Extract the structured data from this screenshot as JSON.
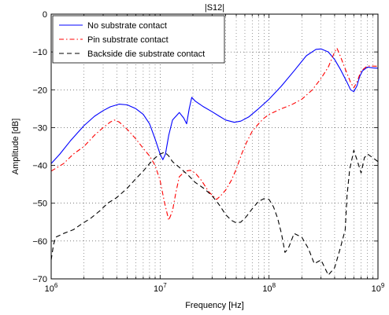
{
  "chart_data": {
    "type": "line",
    "title": "|S12|",
    "xlabel": "Frequency [Hz]",
    "ylabel": "Amplitude [dB]",
    "xscale": "log",
    "xlim": [
      1000000,
      1000000000
    ],
    "ylim": [
      -70,
      0
    ],
    "grid": "on (major solid, minor dotted)",
    "legend_position": "top-left",
    "x_tick_labels": [
      {
        "base": "10",
        "exp": "6"
      },
      {
        "base": "10",
        "exp": "7"
      },
      {
        "base": "10",
        "exp": "8"
      },
      {
        "base": "10",
        "exp": "9"
      }
    ],
    "y_tick_labels": [
      "0",
      "−10",
      "−20",
      "−30",
      "−40",
      "−50",
      "−60",
      "−70"
    ],
    "y_ticks": [
      0,
      -10,
      -20,
      -30,
      -40,
      -50,
      -60,
      -70
    ],
    "series": [
      {
        "name": "No substrate contact",
        "color": "#0000ff",
        "dash": "solid",
        "points": [
          [
            1000000,
            -39.5
          ],
          [
            1200000,
            -37
          ],
          [
            1500000,
            -33.5
          ],
          [
            2000000,
            -29.5
          ],
          [
            2500000,
            -27
          ],
          [
            3000000,
            -25.5
          ],
          [
            3500000,
            -24.5
          ],
          [
            4200000,
            -23.8
          ],
          [
            5000000,
            -24
          ],
          [
            6000000,
            -25
          ],
          [
            7000000,
            -26.5
          ],
          [
            8000000,
            -29
          ],
          [
            9000000,
            -33
          ],
          [
            10000000,
            -37
          ],
          [
            10600000,
            -38.5
          ],
          [
            11200000,
            -37
          ],
          [
            12000000,
            -32
          ],
          [
            13000000,
            -28
          ],
          [
            15000000,
            -26
          ],
          [
            16500000,
            -27.5
          ],
          [
            17500000,
            -29
          ],
          [
            18500000,
            -25
          ],
          [
            19500000,
            -22
          ],
          [
            21000000,
            -23
          ],
          [
            25000000,
            -24.5
          ],
          [
            30000000,
            -25.8
          ],
          [
            35000000,
            -27
          ],
          [
            40000000,
            -28
          ],
          [
            48000000,
            -28.6
          ],
          [
            55000000,
            -28.3
          ],
          [
            65000000,
            -27.2
          ],
          [
            80000000,
            -25
          ],
          [
            100000000,
            -22.5
          ],
          [
            130000000,
            -19
          ],
          [
            170000000,
            -15
          ],
          [
            220000000,
            -11
          ],
          [
            270000000,
            -9.3
          ],
          [
            300000000,
            -9.2
          ],
          [
            350000000,
            -10
          ],
          [
            400000000,
            -12
          ],
          [
            450000000,
            -14.5
          ],
          [
            520000000,
            -18
          ],
          [
            560000000,
            -20
          ],
          [
            600000000,
            -20.5
          ],
          [
            640000000,
            -19
          ],
          [
            680000000,
            -16.5
          ],
          [
            720000000,
            -15
          ],
          [
            800000000,
            -14
          ],
          [
            900000000,
            -14.2
          ],
          [
            1000000000,
            -14.3
          ]
        ]
      },
      {
        "name": "Pin substrate contact",
        "color": "#ff0000",
        "dash": "dashdot",
        "points": [
          [
            1000000,
            -41.5
          ],
          [
            1300000,
            -39.5
          ],
          [
            1600000,
            -37
          ],
          [
            2000000,
            -35
          ],
          [
            2500000,
            -32
          ],
          [
            3000000,
            -30
          ],
          [
            3500000,
            -28.5
          ],
          [
            3800000,
            -28
          ],
          [
            4200000,
            -28.5
          ],
          [
            5000000,
            -30.5
          ],
          [
            6000000,
            -33
          ],
          [
            7000000,
            -35.5
          ],
          [
            8000000,
            -37.5
          ],
          [
            9000000,
            -40
          ],
          [
            10000000,
            -44
          ],
          [
            11000000,
            -50
          ],
          [
            12000000,
            -54.5
          ],
          [
            13000000,
            -52
          ],
          [
            14000000,
            -47
          ],
          [
            15000000,
            -43
          ],
          [
            17000000,
            -41.5
          ],
          [
            19000000,
            -41.3
          ],
          [
            21000000,
            -42
          ],
          [
            24000000,
            -44
          ],
          [
            28000000,
            -47
          ],
          [
            33000000,
            -49
          ],
          [
            36000000,
            -48
          ],
          [
            40000000,
            -46.5
          ],
          [
            45000000,
            -44
          ],
          [
            50000000,
            -41
          ],
          [
            56000000,
            -37
          ],
          [
            62000000,
            -34
          ],
          [
            70000000,
            -31
          ],
          [
            80000000,
            -29
          ],
          [
            90000000,
            -27.5
          ],
          [
            100000000,
            -26.5
          ],
          [
            130000000,
            -25
          ],
          [
            160000000,
            -24
          ],
          [
            200000000,
            -22.5
          ],
          [
            250000000,
            -20
          ],
          [
            300000000,
            -17
          ],
          [
            350000000,
            -14
          ],
          [
            400000000,
            -10
          ],
          [
            420000000,
            -9
          ],
          [
            450000000,
            -11
          ],
          [
            500000000,
            -14.5
          ],
          [
            560000000,
            -18
          ],
          [
            600000000,
            -19.5
          ],
          [
            640000000,
            -18
          ],
          [
            700000000,
            -15
          ],
          [
            800000000,
            -13.7
          ],
          [
            1000000000,
            -13.8
          ]
        ]
      },
      {
        "name": "Backside die substrate contact",
        "color": "#000000",
        "dash": "dashed",
        "points": [
          [
            1000000,
            -65
          ],
          [
            1050000,
            -61
          ],
          [
            1100000,
            -59
          ],
          [
            1300000,
            -58
          ],
          [
            1600000,
            -57
          ],
          [
            1900000,
            -55.5
          ],
          [
            2300000,
            -54
          ],
          [
            2800000,
            -52
          ],
          [
            3300000,
            -50
          ],
          [
            4000000,
            -48.5
          ],
          [
            5000000,
            -46
          ],
          [
            6000000,
            -43.5
          ],
          [
            7000000,
            -41.5
          ],
          [
            8000000,
            -39.5
          ],
          [
            9000000,
            -38
          ],
          [
            10000000,
            -37
          ],
          [
            11000000,
            -36.5
          ],
          [
            12000000,
            -37.5
          ],
          [
            13000000,
            -39
          ],
          [
            15000000,
            -40.5
          ],
          [
            18000000,
            -42.5
          ],
          [
            21000000,
            -44.5
          ],
          [
            25000000,
            -46
          ],
          [
            30000000,
            -48
          ],
          [
            35000000,
            -50.5
          ],
          [
            40000000,
            -53
          ],
          [
            45000000,
            -54.5
          ],
          [
            50000000,
            -55.2
          ],
          [
            55000000,
            -55
          ],
          [
            62000000,
            -53.5
          ],
          [
            70000000,
            -51.5
          ],
          [
            80000000,
            -49.5
          ],
          [
            90000000,
            -48.8
          ],
          [
            100000000,
            -49
          ],
          [
            110000000,
            -51
          ],
          [
            120000000,
            -54
          ],
          [
            130000000,
            -58
          ],
          [
            140000000,
            -63
          ],
          [
            150000000,
            -62
          ],
          [
            170000000,
            -58
          ],
          [
            200000000,
            -59
          ],
          [
            230000000,
            -62
          ],
          [
            260000000,
            -66
          ],
          [
            300000000,
            -65
          ],
          [
            350000000,
            -69
          ],
          [
            400000000,
            -67
          ],
          [
            450000000,
            -62
          ],
          [
            500000000,
            -57
          ],
          [
            520000000,
            -48
          ],
          [
            550000000,
            -41
          ],
          [
            580000000,
            -38
          ],
          [
            600000000,
            -36
          ],
          [
            650000000,
            -39
          ],
          [
            700000000,
            -42
          ],
          [
            750000000,
            -38
          ],
          [
            800000000,
            -37
          ],
          [
            900000000,
            -38
          ],
          [
            1000000000,
            -39
          ]
        ]
      }
    ]
  }
}
